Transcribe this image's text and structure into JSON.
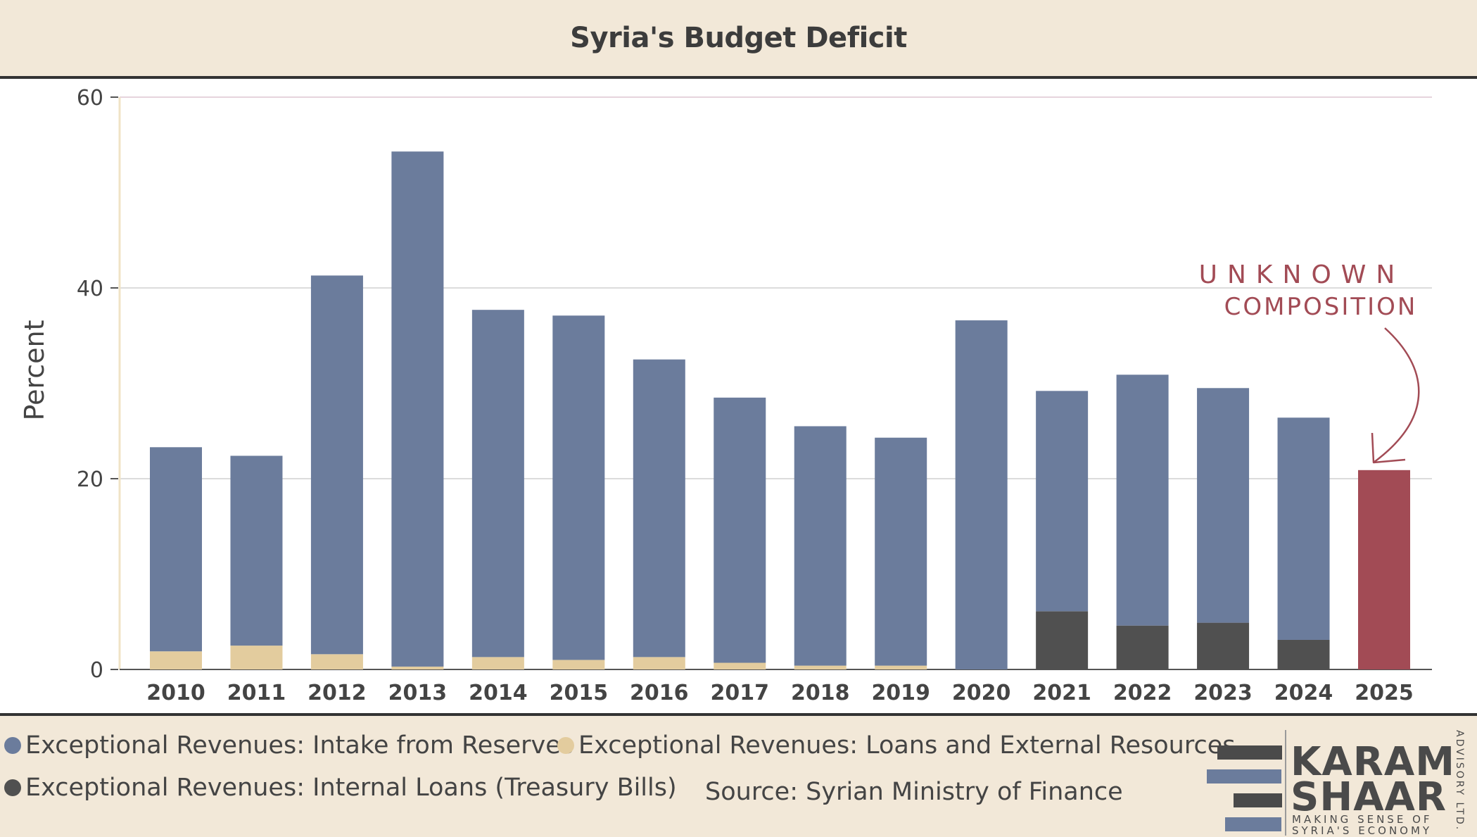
{
  "header": {
    "title": "Syria's Budget Deficit"
  },
  "chart_data": {
    "type": "bar",
    "stacked": true,
    "categories": [
      "2010",
      "2011",
      "2012",
      "2013",
      "2014",
      "2015",
      "2016",
      "2017",
      "2018",
      "2019",
      "2020",
      "2021",
      "2022",
      "2023",
      "2024",
      "2025"
    ],
    "series": [
      {
        "name": "Exceptional Revenues: Internal Loans (Treasury Bills)",
        "color": "#505050",
        "values": [
          0,
          0,
          0,
          0,
          0,
          0,
          0,
          0,
          0,
          0,
          0,
          6.1,
          4.6,
          4.9,
          3.1,
          0
        ]
      },
      {
        "name": "Exceptional Revenues: Loans and External Resources",
        "color": "#e3cc9e",
        "values": [
          1.9,
          2.5,
          1.6,
          0.3,
          1.3,
          1.0,
          1.3,
          0.7,
          0.4,
          0.4,
          0,
          0,
          0,
          0,
          0,
          0
        ]
      },
      {
        "name": "Exceptional Revenues: Intake from Reserves",
        "color": "#6b7c9c",
        "values": [
          21.4,
          19.9,
          39.7,
          54.0,
          36.4,
          36.1,
          31.2,
          27.8,
          25.1,
          23.9,
          36.6,
          23.1,
          26.3,
          24.6,
          23.3,
          0
        ]
      },
      {
        "name": "Unknown composition",
        "color": "#a24b55",
        "values": [
          0,
          0,
          0,
          0,
          0,
          0,
          0,
          0,
          0,
          0,
          0,
          0,
          0,
          0,
          0,
          20.9
        ]
      }
    ],
    "ylabel": "Percent",
    "ylim": [
      0,
      60
    ],
    "yticks": [
      0,
      20,
      40,
      60
    ],
    "grid": true,
    "annotation": {
      "line1": "UNKNOWN",
      "line2": "COMPOSITION",
      "target": "2025",
      "color": "#a24b55"
    },
    "legend_position": "bottom"
  },
  "legend": {
    "items": [
      {
        "label": "Exceptional Revenues: Intake from Reserves",
        "color": "#6b7c9c"
      },
      {
        "label": "Exceptional Revenues: Loans and External Resources",
        "color": "#e3cc9e"
      },
      {
        "label": "Exceptional Revenues: Internal Loans (Treasury Bills)",
        "color": "#505050"
      }
    ]
  },
  "source": "Source: Syrian Ministry of Finance",
  "logo": {
    "line1": "KARAM",
    "line2": "SHAAR",
    "tagline1": "MAKING SENSE OF",
    "tagline2": "SYRIA'S ECONOMY",
    "side": "ADVISORY LTD."
  }
}
